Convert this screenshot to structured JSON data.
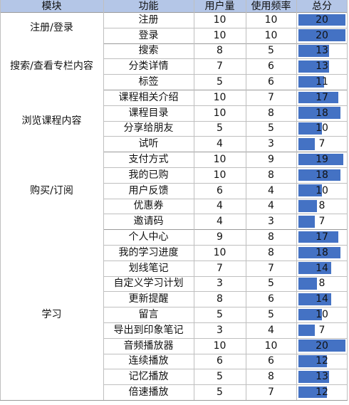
{
  "headers": {
    "module": "模块",
    "function": "功能",
    "users": "用户量",
    "frequency": "使用频率",
    "total": "总分"
  },
  "modules": [
    {
      "name": "注册/登录",
      "rows": [
        {
          "function": "注册",
          "users": "10",
          "frequency": "10",
          "total": "20",
          "total_value": 20
        },
        {
          "function": "登录",
          "users": "10",
          "frequency": "10",
          "total": "20",
          "total_value": 20
        }
      ]
    },
    {
      "name": "搜索/查看专栏内容",
      "rows": [
        {
          "function": "搜索",
          "users": "8",
          "frequency": "5",
          "total": "13",
          "total_value": 13
        },
        {
          "function": "分类详情",
          "users": "7",
          "frequency": "6",
          "total": "13",
          "total_value": 13
        },
        {
          "function": "标签",
          "users": "5",
          "frequency": "6",
          "total": "11",
          "total_value": 11
        }
      ]
    },
    {
      "name": "浏览课程内容",
      "rows": [
        {
          "function": "课程相关介绍",
          "users": "10",
          "frequency": "7",
          "total": "17",
          "total_value": 17
        },
        {
          "function": "课程目录",
          "users": "10",
          "frequency": "8",
          "total": "18",
          "total_value": 18
        },
        {
          "function": "分享给朋友",
          "users": "5",
          "frequency": "5",
          "total": "10",
          "total_value": 10
        },
        {
          "function": "试听",
          "users": "4",
          "frequency": "3",
          "total": "7",
          "total_value": 7
        }
      ]
    },
    {
      "name": "购买/订阅",
      "rows": [
        {
          "function": "支付方式",
          "users": "10",
          "frequency": "9",
          "total": "19",
          "total_value": 19
        },
        {
          "function": "我的已购",
          "users": "10",
          "frequency": "8",
          "total": "18",
          "total_value": 18
        },
        {
          "function": "用户反馈",
          "users": "6",
          "frequency": "4",
          "total": "10",
          "total_value": 10
        },
        {
          "function": "优惠券",
          "users": "4",
          "frequency": "4",
          "total": "8",
          "total_value": 8
        },
        {
          "function": "邀请码",
          "users": "4",
          "frequency": "3",
          "total": "7",
          "total_value": 7
        }
      ]
    },
    {
      "name": "学习",
      "rows": [
        {
          "function": "个人中心",
          "users": "9",
          "frequency": "8",
          "total": "17",
          "total_value": 17
        },
        {
          "function": "我的学习进度",
          "users": "10",
          "frequency": "8",
          "total": "18",
          "total_value": 18
        },
        {
          "function": "划线笔记",
          "users": "7",
          "frequency": "7",
          "total": "14",
          "total_value": 14
        },
        {
          "function": "自定义学习计划",
          "users": "3",
          "frequency": "5",
          "total": "8",
          "total_value": 8
        },
        {
          "function": "更新提醒",
          "users": "8",
          "frequency": "6",
          "total": "14",
          "total_value": 14
        },
        {
          "function": "留言",
          "users": "5",
          "frequency": "5",
          "total": "10",
          "total_value": 10
        },
        {
          "function": "导出到印象笔记",
          "users": "3",
          "frequency": "4",
          "total": "7",
          "total_value": 7
        },
        {
          "function": "音频播放器",
          "users": "10",
          "frequency": "10",
          "total": "20",
          "total_value": 20
        },
        {
          "function": "连续播放",
          "users": "6",
          "frequency": "6",
          "total": "12",
          "total_value": 12
        },
        {
          "function": "记忆播放",
          "users": "5",
          "frequency": "8",
          "total": "13",
          "total_value": 13
        },
        {
          "function": "倍速播放",
          "users": "5",
          "frequency": "7",
          "total": "12",
          "total_value": 12
        }
      ]
    }
  ],
  "colors": {
    "header_bg": "#b4c6e7",
    "bar": "#4472c4"
  },
  "bar_max": 20
}
